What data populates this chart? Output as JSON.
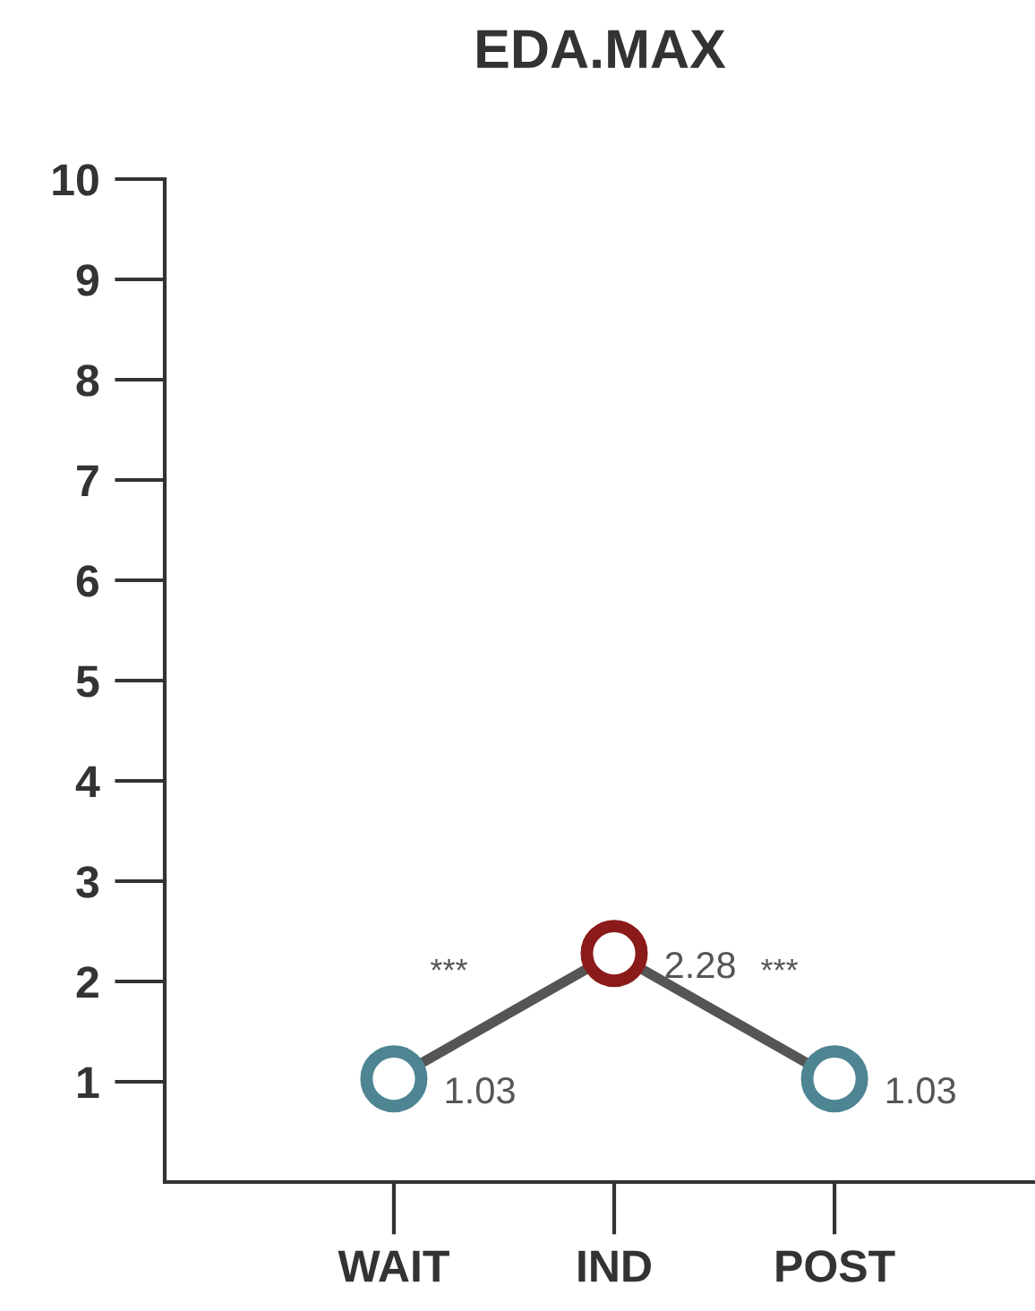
{
  "chart_data": {
    "type": "line",
    "title": "EDA.MAX",
    "categories": [
      "WAIT",
      "IND",
      "POST"
    ],
    "series": [
      {
        "color": "#555555",
        "colors": [
          "#4e8592",
          "#8b1a1a",
          "#4e8592"
        ],
        "values": [
          1.03,
          2.28,
          1.03
        ]
      }
    ],
    "ylim": [
      0,
      10
    ],
    "yticks": [
      1,
      2,
      3,
      4,
      5,
      6,
      7,
      8,
      9,
      10
    ],
    "data_labels": true,
    "marker": "circle",
    "line_style": "solid",
    "annotations": [
      "***",
      "***"
    ]
  }
}
